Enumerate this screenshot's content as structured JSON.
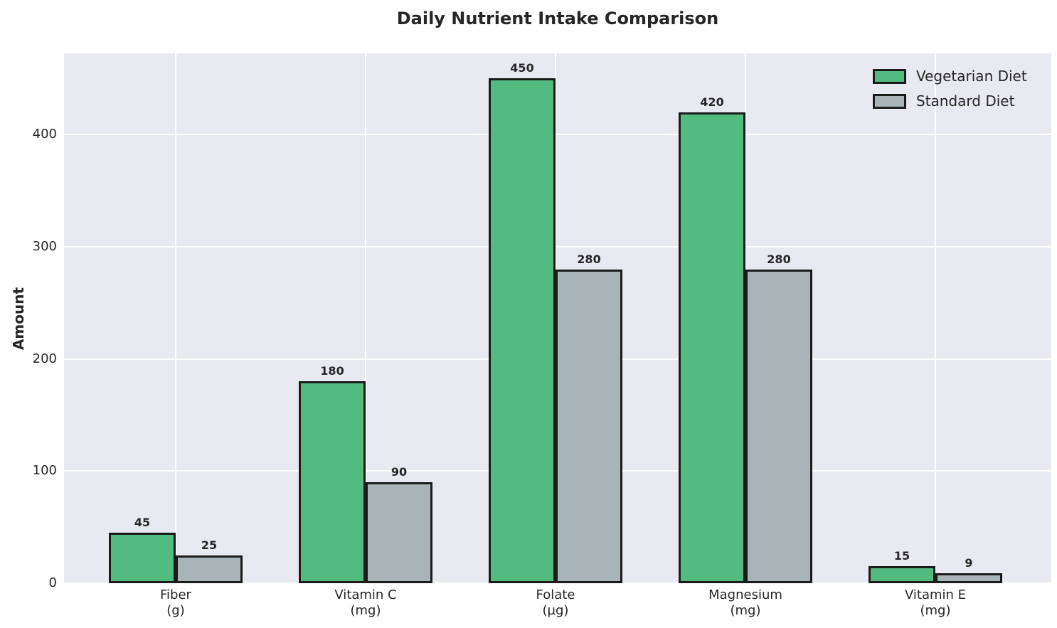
{
  "title": "Daily Nutrient Intake Comparison",
  "chart_data": {
    "type": "bar",
    "categories": [
      {
        "label": "Fiber",
        "unit": "(g)"
      },
      {
        "label": "Vitamin C",
        "unit": "(mg)"
      },
      {
        "label": "Folate",
        "unit": "(µg)"
      },
      {
        "label": "Magnesium",
        "unit": "(mg)"
      },
      {
        "label": "Vitamin E",
        "unit": "(mg)"
      }
    ],
    "series": [
      {
        "name": "Vegetarian Diet",
        "color": "#52bb80",
        "values": [
          45,
          180,
          450,
          420,
          15
        ]
      },
      {
        "name": "Standard Diet",
        "color": "#a9b4b8",
        "values": [
          25,
          90,
          280,
          280,
          9
        ]
      }
    ],
    "ylabel": "Amount",
    "xlabel": "",
    "yticks": [
      0,
      100,
      200,
      300,
      400
    ],
    "ylim": [
      0,
      472.5
    ],
    "grid": true,
    "legend_position": "upper right",
    "bar_value_labels": true,
    "style": {
      "plot_background": "#e9e9f1",
      "grid_color": "#ffffff",
      "bar_edge_color": "#1b1b1b",
      "text_color": "#262626",
      "figure_background": "#ffffff"
    }
  }
}
